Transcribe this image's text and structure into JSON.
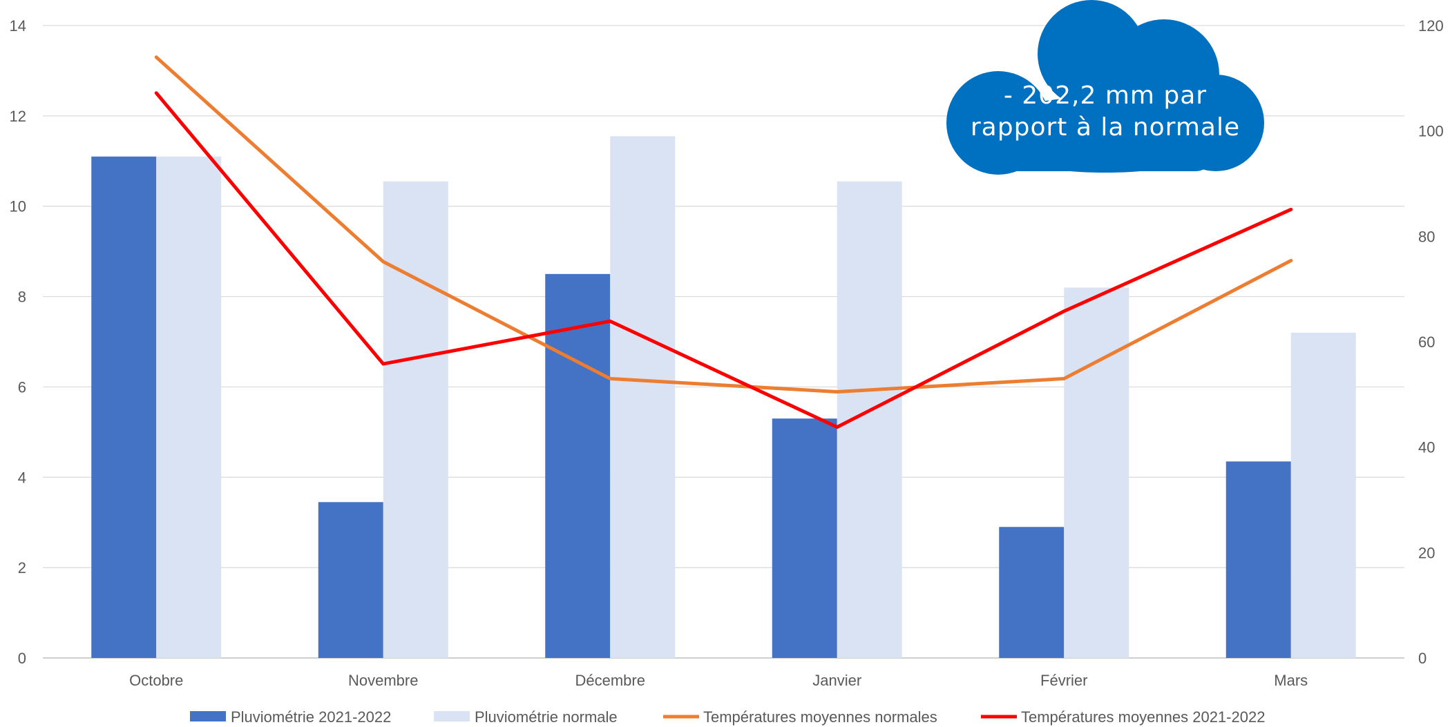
{
  "chart_data": {
    "type": "bar",
    "title": "",
    "categories": [
      "Octobre",
      "Novembre",
      "Décembre",
      "Janvier",
      "Février",
      "Mars"
    ],
    "y_left": {
      "ticks": [
        "0",
        "2",
        "4",
        "6",
        "8",
        "10",
        "12",
        "14"
      ],
      "lim": [
        0,
        14
      ]
    },
    "y_right": {
      "ticks": [
        "0",
        "20",
        "40",
        "60",
        "80",
        "100",
        "120"
      ],
      "lim": [
        0,
        120
      ]
    },
    "grid": true,
    "legend_position": "bottom",
    "series": [
      {
        "name": "Pluviométrie 2021-2022",
        "type": "bar",
        "axis": "left",
        "color": "#4472C4",
        "values": [
          11.1,
          3.45,
          8.5,
          5.3,
          2.9,
          4.35
        ]
      },
      {
        "name": "Pluviométrie normale",
        "type": "bar",
        "axis": "left",
        "color": "#DAE3F3",
        "values": [
          11.1,
          10.55,
          11.55,
          10.55,
          8.2,
          7.2
        ]
      },
      {
        "name": "Températures moyennes normales",
        "type": "line",
        "axis": "right",
        "color": "#ED7D31",
        "values": [
          114,
          75.2,
          53,
          50.5,
          53,
          75.4
        ]
      },
      {
        "name": "Températures moyennes 2021-2022",
        "type": "line",
        "axis": "right",
        "color": "#FF0000",
        "values": [
          107.2,
          55.8,
          63.9,
          43.8,
          65.8,
          85.1
        ]
      }
    ],
    "annotation": {
      "lines": [
        "- 202,2 mm par",
        "rapport à la normale"
      ],
      "shape": "cloud",
      "color": "#0070C0"
    }
  }
}
